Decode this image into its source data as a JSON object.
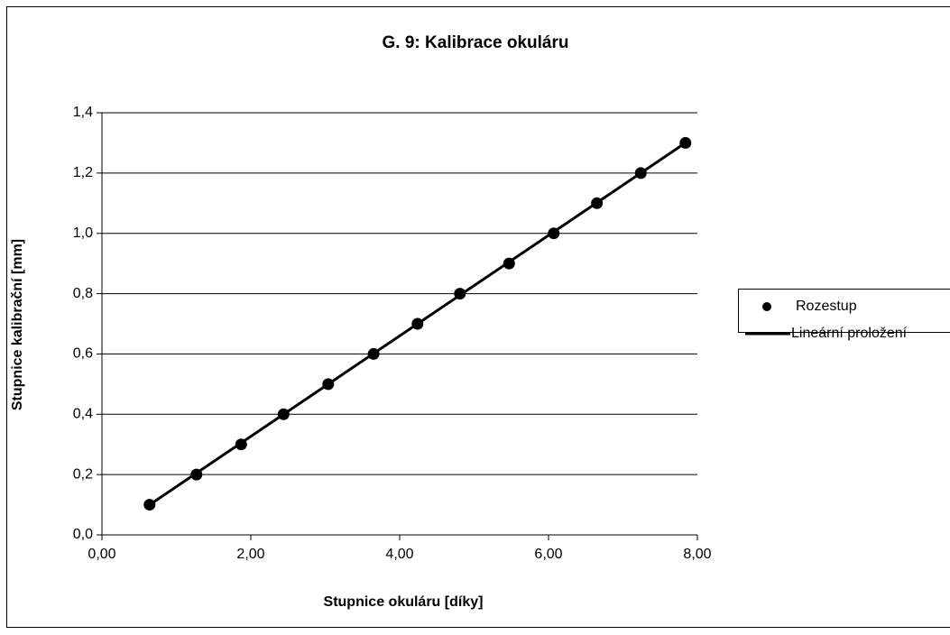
{
  "chart_data": {
    "type": "scatter",
    "title": "G. 9: Kalibrace okuláru",
    "x_label": "Stupnice okuláru [díky]",
    "y_label": "Stupnice kalibrační [mm]",
    "series": [
      {
        "name": "Rozestup",
        "mode": "markers",
        "color": "#000000",
        "x": [
          0.64,
          1.27,
          1.87,
          2.44,
          3.04,
          3.65,
          4.24,
          4.81,
          5.47,
          6.07,
          6.65,
          7.24,
          7.84
        ],
        "values": [
          0.1,
          0.2,
          0.3,
          0.4,
          0.5,
          0.6,
          0.7,
          0.8,
          0.9,
          1.0,
          1.1,
          1.2,
          1.3
        ]
      },
      {
        "name": "Lineární proložení",
        "mode": "line",
        "color": "#000000",
        "x": [
          0.64,
          7.84
        ],
        "values": [
          0.1,
          1.3
        ]
      }
    ],
    "xlim": [
      0,
      8
    ],
    "ylim": [
      0,
      1.4
    ],
    "xticks": [
      {
        "value": 0,
        "label": "0,00"
      },
      {
        "value": 2,
        "label": "2,00"
      },
      {
        "value": 4,
        "label": "4,00"
      },
      {
        "value": 6,
        "label": "6,00"
      },
      {
        "value": 8,
        "label": "8,00"
      }
    ],
    "yticks": [
      {
        "value": 0,
        "label": "0,0"
      },
      {
        "value": 0.2,
        "label": "0,2"
      },
      {
        "value": 0.4,
        "label": "0,4"
      },
      {
        "value": 0.6,
        "label": "0,6"
      },
      {
        "value": 0.8,
        "label": "0,8"
      },
      {
        "value": 1.0,
        "label": "1,0"
      },
      {
        "value": 1.2,
        "label": "1,2"
      },
      {
        "value": 1.4,
        "label": "1,4"
      }
    ],
    "grid": true,
    "legend": "right"
  }
}
